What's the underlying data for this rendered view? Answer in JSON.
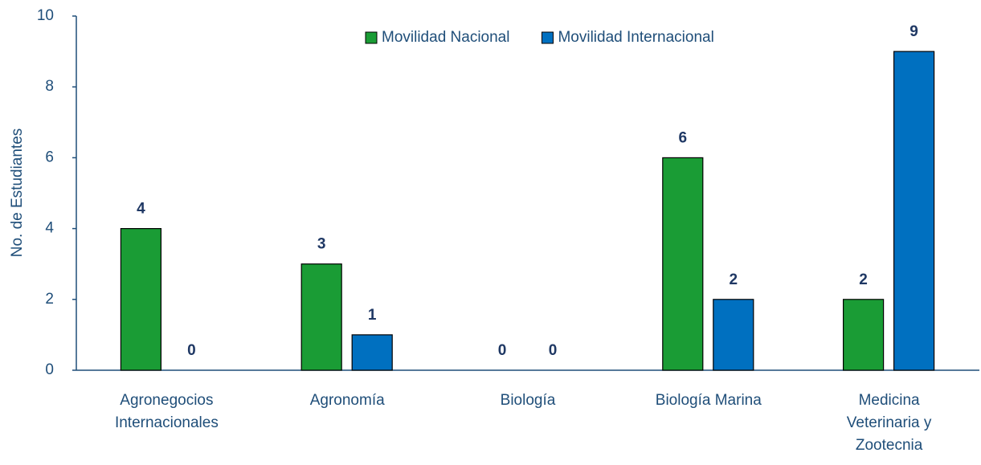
{
  "chart_data": {
    "type": "bar",
    "categories": [
      "Agronegocios Internacionales",
      "Agronomía",
      "Biología",
      "Biología Marina",
      "Medicina Veterinaria y Zootecnia"
    ],
    "series": [
      {
        "name": "Movilidad Nacional",
        "color": "#1a9c35",
        "values": [
          4,
          3,
          0,
          6,
          2
        ]
      },
      {
        "name": "Movilidad Internacional",
        "color": "#0070c0",
        "values": [
          0,
          1,
          0,
          2,
          9
        ]
      }
    ],
    "y_label": "No. de Estudiantes",
    "ylim": [
      0,
      10
    ],
    "yticks": [
      0,
      2,
      4,
      6,
      8,
      10
    ],
    "grid": false,
    "legend": "top"
  }
}
